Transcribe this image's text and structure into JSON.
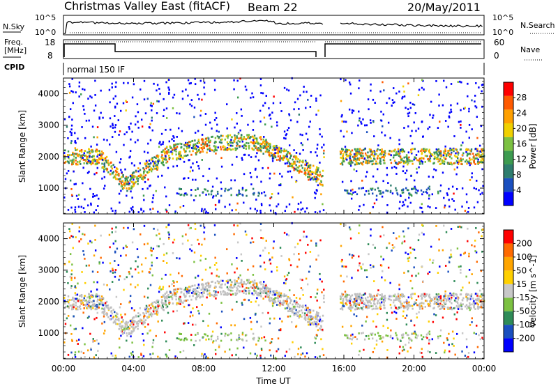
{
  "title": "Christmas Valley East (fitACF)",
  "beam": "Beam 22",
  "date": "20/May/2011",
  "header_panels": {
    "nsky_label": "N.Sky",
    "nsky_ticks": [
      "10^5",
      "10^0"
    ],
    "nsearch_label": "N.Search",
    "freq_label": "Freq.",
    "freq_unit": "[MHz]",
    "freq_ticks": [
      "18",
      "8"
    ],
    "nave_ticks": [
      "60",
      "0"
    ],
    "nave_label": "Nave",
    "cpid_label": "CPID",
    "cpid_value": "normal 150 IF"
  },
  "colors": {
    "power_scale": [
      "#0000ff",
      "#1a4fbf",
      "#2e7d6e",
      "#3d9b50",
      "#7cc142",
      "#f0d000",
      "#ffa000",
      "#ff5a00",
      "#ff0000"
    ],
    "velocity_scale": [
      "#ff0000",
      "#ff6a00",
      "#ffa500",
      "#ffd000",
      "#c8c8c8",
      "#7cc142",
      "#2e8b57",
      "#1a4fbf",
      "#0000ff"
    ],
    "ground_scatter": "#bfbfbf"
  },
  "chart_data": [
    {
      "type": "heatmap",
      "panel": "power",
      "xlabel": "",
      "ylabel": "Slant Range [km]",
      "xlim": [
        "00:00",
        "24:00"
      ],
      "ylim": [
        180,
        4500
      ],
      "yticks": [
        "1000",
        "2000",
        "3000",
        "4000"
      ],
      "colorbar_label": "Power [dB]",
      "colorbar_ticks": [
        "4",
        "8",
        "12",
        "16",
        "20",
        "24",
        "28"
      ],
      "data_gap": [
        "14:50",
        "15:45"
      ]
    },
    {
      "type": "heatmap",
      "panel": "velocity",
      "xlabel": "Time UT",
      "ylabel": "Slant Range [km]",
      "xlim": [
        "00:00",
        "24:00"
      ],
      "ylim": [
        180,
        4500
      ],
      "xticks": [
        "00:00",
        "04:00",
        "08:00",
        "12:00",
        "16:00",
        "20:00",
        "00:00"
      ],
      "yticks": [
        "1000",
        "2000",
        "3000",
        "4000"
      ],
      "colorbar_label": "Velocity [m s^-1]",
      "colorbar_ticks": [
        "200",
        "100",
        "50",
        "15",
        "-15",
        "-50",
        "-100",
        "-200"
      ],
      "data_gap": [
        "14:50",
        "15:45"
      ]
    }
  ]
}
